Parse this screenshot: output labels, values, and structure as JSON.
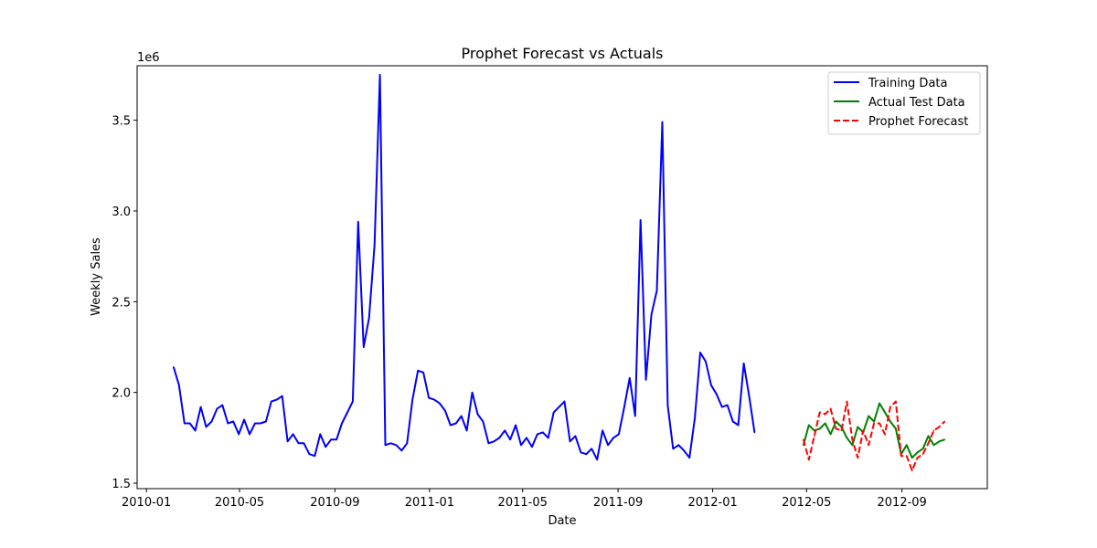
{
  "chart_data": {
    "type": "line",
    "title": "Prophet Forecast vs Actuals",
    "xlabel": "Date",
    "ylabel": "Weekly Sales",
    "y_offset_label": "1e6",
    "ylim": [
      1.47,
      3.8
    ],
    "xlim": [
      "2009-12-20",
      "2012-12-20"
    ],
    "x_ticks": [
      "2010-01",
      "2010-05",
      "2010-09",
      "2011-01",
      "2011-05",
      "2011-09",
      "2012-01",
      "2012-05",
      "2012-09"
    ],
    "y_ticks": [
      "1.5",
      "2.0",
      "2.5",
      "3.0",
      "3.5"
    ],
    "legend_position": "top-right",
    "grid": false,
    "series": [
      {
        "name": "Training Data",
        "color": "#0000ff",
        "style": "solid",
        "start": "2010-02-05",
        "interval_days": 7,
        "values": [
          2.14,
          2.04,
          1.83,
          1.83,
          1.79,
          1.92,
          1.81,
          1.84,
          1.91,
          1.93,
          1.83,
          1.84,
          1.77,
          1.85,
          1.77,
          1.83,
          1.83,
          1.84,
          1.95,
          1.96,
          1.98,
          1.73,
          1.77,
          1.72,
          1.72,
          1.66,
          1.65,
          1.77,
          1.7,
          1.74,
          1.74,
          1.83,
          1.89,
          1.95,
          2.94,
          2.25,
          2.41,
          2.81,
          3.75,
          1.71,
          1.72,
          1.71,
          1.68,
          1.72,
          1.96,
          2.12,
          2.11,
          1.97,
          1.96,
          1.94,
          1.9,
          1.82,
          1.83,
          1.87,
          1.79,
          2.0,
          1.88,
          1.84,
          1.72,
          1.73,
          1.75,
          1.79,
          1.74,
          1.82,
          1.71,
          1.75,
          1.7,
          1.77,
          1.78,
          1.75,
          1.89,
          1.92,
          1.95,
          1.73,
          1.76,
          1.67,
          1.66,
          1.69,
          1.63,
          1.79,
          1.71,
          1.75,
          1.77,
          1.92,
          2.08,
          1.87,
          2.95,
          2.07,
          2.43,
          2.56,
          3.49,
          1.93,
          1.69,
          1.71,
          1.68,
          1.64,
          1.86,
          2.22,
          2.17,
          2.04,
          1.99,
          1.92,
          1.93,
          1.84,
          1.82,
          2.16,
          1.98,
          1.78
        ]
      },
      {
        "name": "Actual Test Data",
        "color": "#008000",
        "style": "solid",
        "start": "2012-04-27",
        "interval_days": 7,
        "values": [
          1.71,
          1.82,
          1.79,
          1.8,
          1.83,
          1.77,
          1.84,
          1.81,
          1.75,
          1.71,
          1.81,
          1.78,
          1.87,
          1.84,
          1.94,
          1.89,
          1.84,
          1.8,
          1.66,
          1.71,
          1.64,
          1.67,
          1.69,
          1.76,
          1.71,
          1.73,
          1.74
        ]
      },
      {
        "name": "Prophet Forecast",
        "color": "#ff0000",
        "style": "dashed",
        "start": "2012-04-27",
        "interval_days": 7,
        "values": [
          1.74,
          1.63,
          1.76,
          1.89,
          1.88,
          1.91,
          1.8,
          1.79,
          1.95,
          1.74,
          1.64,
          1.79,
          1.71,
          1.83,
          1.83,
          1.77,
          1.92,
          1.95,
          1.65,
          1.65,
          1.57,
          1.64,
          1.66,
          1.72,
          1.79,
          1.81,
          1.84
        ]
      }
    ]
  }
}
